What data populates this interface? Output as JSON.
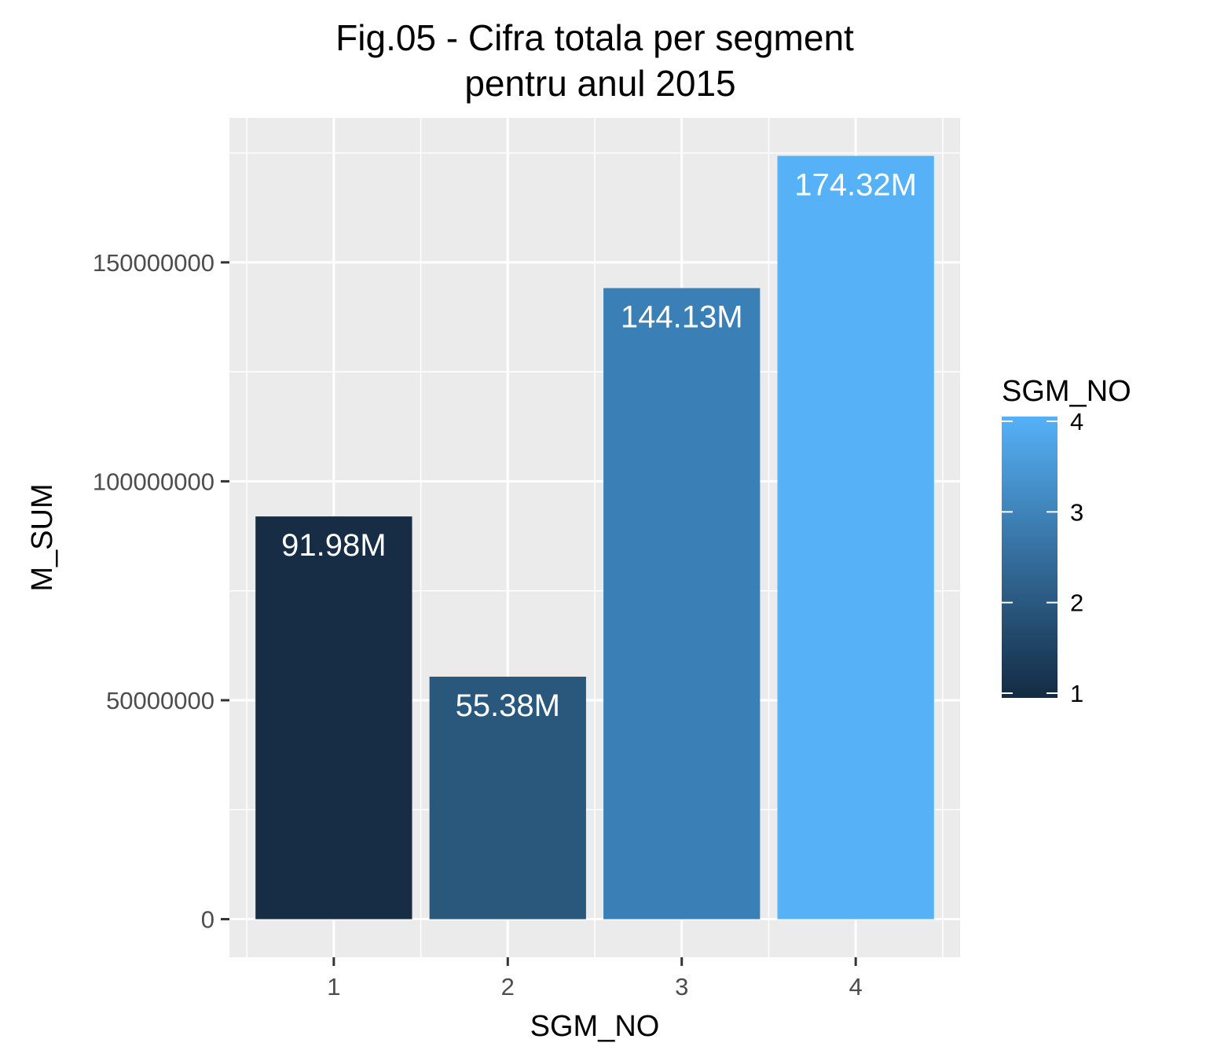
{
  "chart_data": {
    "type": "bar",
    "title_lines": [
      "Fig.05 - Cifra totala per segment",
      "pentru anul 2015"
    ],
    "xlabel": "SGM_NO",
    "ylabel": "M_SUM",
    "categories": [
      "1",
      "2",
      "3",
      "4"
    ],
    "values": [
      91980000,
      55380000,
      144130000,
      174320000
    ],
    "data_labels": [
      "91.98M",
      "55.38M",
      "144.13M",
      "174.32M"
    ],
    "ylim": [
      -8700000,
      183000000
    ],
    "yticks": [
      0,
      50000000,
      100000000,
      150000000
    ],
    "ytick_labels": [
      "0",
      "50000000",
      "100000000",
      "150000000"
    ],
    "bar_colors": [
      "#172d45",
      "#2a577c",
      "#3a7fb6",
      "#56b1f7"
    ],
    "grid": true,
    "legend": {
      "title": "SGM_NO",
      "placement": "right",
      "min": 1,
      "max": 4,
      "breaks": [
        1,
        2,
        3,
        4
      ],
      "break_labels": [
        "1",
        "2",
        "3",
        "4"
      ],
      "color_low": "#132b43",
      "color_high": "#56b1f7"
    },
    "panel_background": "#ebebeb",
    "grid_color": "#ffffff"
  }
}
